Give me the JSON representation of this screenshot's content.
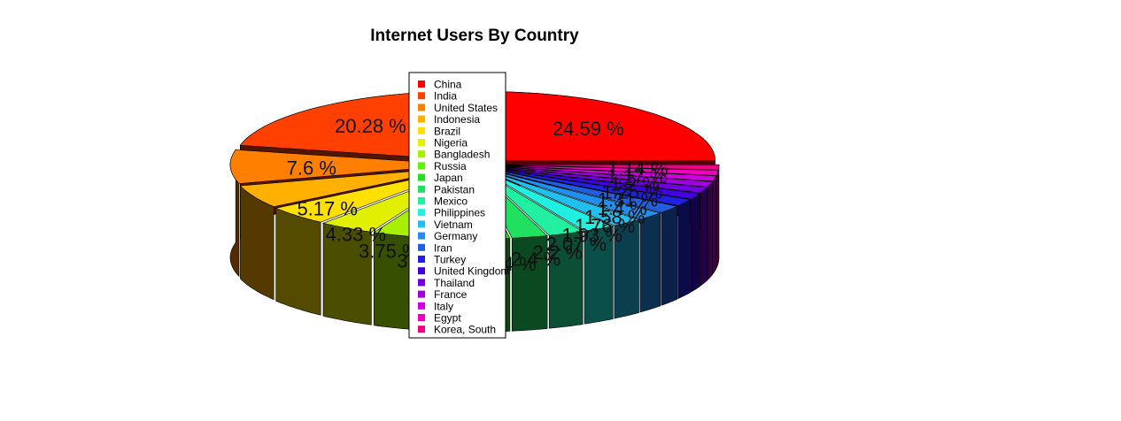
{
  "chart_data": {
    "type": "pie",
    "style": "3d-exploded",
    "title": "Internet Users By Country",
    "legend_placement": "center",
    "categories": [
      "China",
      "India",
      "United States",
      "Indonesia",
      "Brazil",
      "Nigeria",
      "Bangladesh",
      "Russia",
      "Japan",
      "Pakistan",
      "Mexico",
      "Philippines",
      "Vietnam",
      "Germany",
      "Iran",
      "Turkey",
      "United Kingdom",
      "Thailand",
      "France",
      "Italy",
      "Egypt",
      "Korea, South"
    ],
    "values": [
      24.59,
      20.28,
      7.6,
      5.17,
      4.33,
      3.75,
      3.1,
      3.1,
      2.7,
      2.4,
      2.4,
      2.2,
      2.07,
      1.93,
      1.76,
      1.58,
      1.4,
      1.31,
      1.25,
      1.2,
      1.17,
      1.14
    ],
    "labels": [
      "24.59 %",
      "20.28 %",
      "7.6 %",
      "5.17 %",
      "4.33 %",
      "3.75 %",
      "3.1 %",
      "3.1 %",
      "2.7 %",
      "2.4 %",
      "2.4 %",
      "2.2 %",
      "2.07 %",
      "1.93 %",
      "1.76 %",
      "1.58 %",
      "1.4 %",
      "1.31 %",
      "1.25 %",
      "1.2 %",
      "1.17 %",
      "1.14 %"
    ],
    "colors": [
      "#FF0000",
      "#FF4000",
      "#FF8000",
      "#FFB000",
      "#FFE000",
      "#E0F000",
      "#A8F000",
      "#60F000",
      "#20E020",
      "#20E060",
      "#20F0A0",
      "#20F0E0",
      "#20C0F0",
      "#2090F0",
      "#2060E0",
      "#2020E0",
      "#4000E0",
      "#7000E0",
      "#A000E0",
      "#D000E0",
      "#F000C0",
      "#F00080"
    ]
  }
}
